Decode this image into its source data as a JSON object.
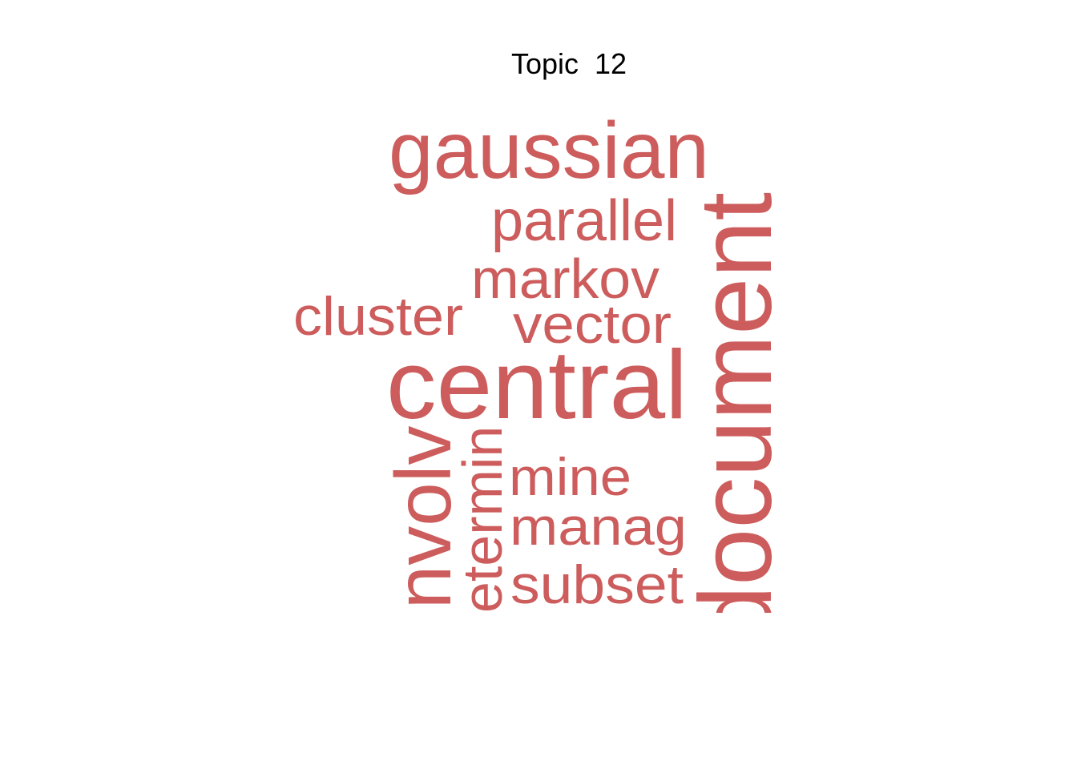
{
  "title": "Topic  12",
  "words": [
    "gaussian",
    "parallel",
    "markov",
    "cluster",
    "vector",
    "central",
    "mine",
    "manag",
    "subset",
    "involv",
    "determin",
    "document"
  ],
  "color": "#cd5c5c"
}
